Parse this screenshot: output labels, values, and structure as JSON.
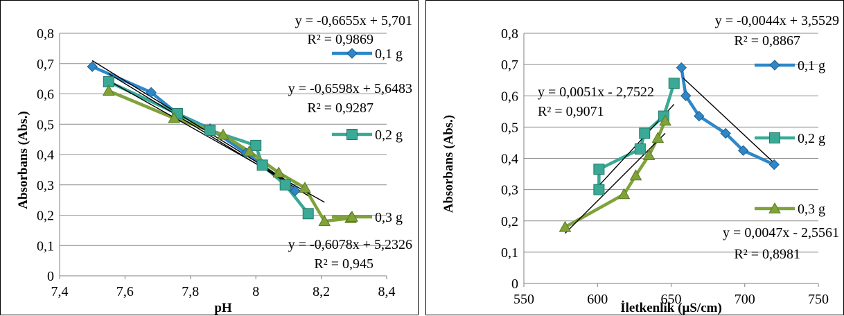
{
  "chart_data": [
    {
      "type": "scatter",
      "xlabel": "pH",
      "ylabel": "Absorbans (Abs.)",
      "xlim": [
        7.4,
        8.4
      ],
      "ylim": [
        0,
        0.8
      ],
      "x_ticks": [
        "7,4",
        "7,6",
        "7,8",
        "8",
        "8,2",
        "8,4"
      ],
      "y_ticks": [
        "0",
        "0,1",
        "0,2",
        "0,3",
        "0,4",
        "0,5",
        "0,6",
        "0,7",
        "0,8"
      ],
      "grid": "horizontal",
      "legend_position": "right",
      "series": [
        {
          "name": "0,1 g",
          "color": "#2E87C8",
          "marker": "diamond",
          "x": [
            7.5,
            7.68,
            7.76,
            7.86,
            7.97,
            8.02,
            8.12
          ],
          "y": [
            0.69,
            0.605,
            0.535,
            0.485,
            0.405,
            0.365,
            0.28
          ]
        },
        {
          "name": "0,2 g",
          "color": "#3AA996",
          "marker": "square",
          "x": [
            7.55,
            7.76,
            7.86,
            8.0,
            8.02,
            8.09,
            8.16
          ],
          "y": [
            0.64,
            0.535,
            0.48,
            0.43,
            0.365,
            0.3,
            0.205
          ]
        },
        {
          "name": "0,3 g",
          "color": "#7FA23A",
          "marker": "triangle",
          "x": [
            7.55,
            7.75,
            7.9,
            7.98,
            8.07,
            8.15,
            8.21,
            8.29
          ],
          "y": [
            0.61,
            0.52,
            0.465,
            0.41,
            0.34,
            0.29,
            0.18,
            0.19
          ]
        }
      ],
      "trendlines": [
        {
          "slope": -0.6655,
          "intercept": 5.701,
          "x_range": [
            7.5,
            8.12
          ]
        },
        {
          "slope": -0.6598,
          "intercept": 5.6483,
          "x_range": [
            7.55,
            8.16
          ]
        },
        {
          "slope": -0.6078,
          "intercept": 5.2326,
          "x_range": [
            7.55,
            8.21
          ]
        }
      ],
      "annotations": [
        {
          "line1": "y = -0,6655x + 5,701",
          "line2": "R² = 0,9869"
        },
        {
          "line1": "y = -0,6598x + 5,6483",
          "line2": "R² = 0,9287"
        },
        {
          "line1": "y = -0,6078x + 5,2326",
          "line2": "R² = 0,945"
        }
      ]
    },
    {
      "type": "scatter",
      "xlabel": "İletkenlik (µS/cm)",
      "ylabel": "Absorbans (Abs.)",
      "xlim": [
        550,
        750
      ],
      "ylim": [
        0,
        0.8
      ],
      "x_ticks": [
        "550",
        "600",
        "650",
        "700",
        "750"
      ],
      "y_ticks": [
        "0",
        "0,1",
        "0,2",
        "0,3",
        "0,4",
        "0,5",
        "0,6",
        "0,7",
        "0,8"
      ],
      "grid": "horizontal",
      "legend_position": "right",
      "series": [
        {
          "name": "0,1 g",
          "color": "#2E87C8",
          "marker": "diamond",
          "x": [
            657,
            660,
            669,
            687,
            699,
            720
          ],
          "y": [
            0.69,
            0.6,
            0.535,
            0.48,
            0.425,
            0.38
          ]
        },
        {
          "name": "0,2 g",
          "color": "#3AA996",
          "marker": "square",
          "x": [
            601,
            601,
            629,
            632,
            645,
            652
          ],
          "y": [
            0.3,
            0.365,
            0.43,
            0.48,
            0.535,
            0.64
          ]
        },
        {
          "name": "0,3 g",
          "color": "#7FA23A",
          "marker": "triangle",
          "x": [
            578,
            618,
            626,
            635,
            641,
            646
          ],
          "y": [
            0.18,
            0.285,
            0.345,
            0.41,
            0.465,
            0.52
          ]
        }
      ],
      "trendlines": [
        {
          "slope": -0.0044,
          "intercept": 3.5529,
          "x_range": [
            658,
            720
          ]
        },
        {
          "slope": 0.0051,
          "intercept": -2.7522,
          "x_range": [
            601,
            652
          ]
        },
        {
          "slope": 0.0047,
          "intercept": -2.5561,
          "x_range": [
            578,
            646
          ]
        }
      ],
      "annotations": [
        {
          "line1": "y = -0,0044x + 3,5529",
          "line2": "R² = 0,8867"
        },
        {
          "line1": "y = 0,0051x - 2,7522",
          "line2": "R² = 0,9071"
        },
        {
          "line1": "y = 0,0047x - 2,5561",
          "line2": "R² = 0,8981"
        }
      ]
    }
  ]
}
